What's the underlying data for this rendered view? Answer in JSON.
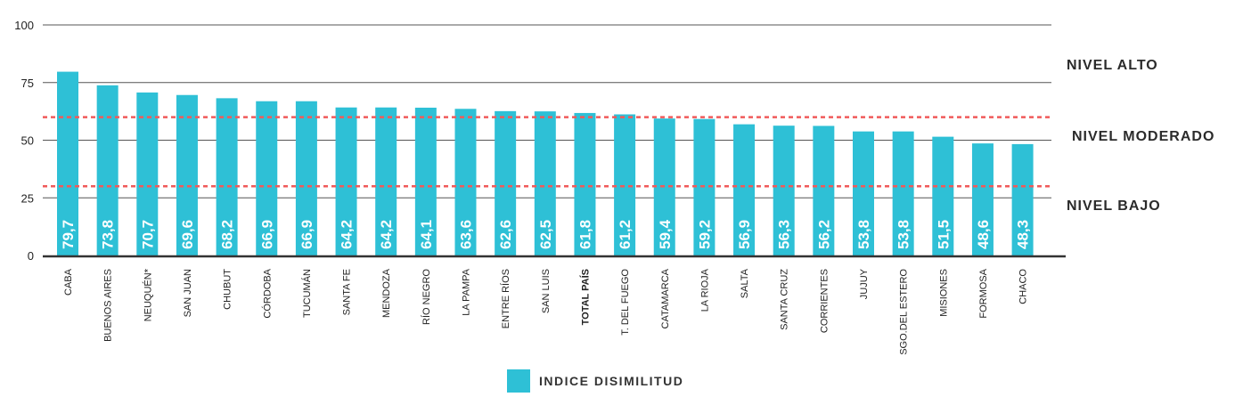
{
  "chart_data": {
    "type": "bar",
    "categories": [
      "CABA",
      "BUENOS AIRES",
      "NEUQUÉN*",
      "SAN JUAN",
      "CHUBUT",
      "CÓRDOBA",
      "TUCUMÁN",
      "SANTA FE",
      "MENDOZA",
      "RÍO NEGRO",
      "LA PAMPA",
      "ENTRE RÍOS",
      "SAN LUIS",
      "TOTAL PAÍS",
      "T. DEL FUEGO",
      "CATAMARCA",
      "LA RIOJA",
      "SALTA",
      "SANTA CRUZ",
      "CORRIENTES",
      "JUJUY",
      "SGO.DEL ESTERO",
      "MISIONES",
      "FORMOSA",
      "CHACO"
    ],
    "values": [
      79.7,
      73.8,
      70.7,
      69.6,
      68.2,
      66.9,
      66.9,
      64.2,
      64.2,
      64.1,
      63.6,
      62.6,
      62.5,
      61.8,
      61.2,
      59.4,
      59.2,
      56.9,
      56.3,
      56.2,
      53.8,
      53.8,
      51.5,
      48.6,
      48.3
    ],
    "value_labels": [
      "79,7",
      "73,8",
      "70,7",
      "69,6",
      "68,2",
      "66,9",
      "66,9",
      "64,2",
      "64,2",
      "64,1",
      "63,6",
      "62,6",
      "62,5",
      "61,8",
      "61,2",
      "59,4",
      "59,2",
      "56,9",
      "56,3",
      "56,2",
      "53,8",
      "53,8",
      "51,5",
      "48,6",
      "48,3"
    ],
    "highlight_category": "TOTAL PAÍS",
    "yticks": [
      "0",
      "25",
      "50",
      "75",
      "100"
    ],
    "ylim": [
      0,
      100
    ],
    "grid": true,
    "thresholds": [
      60,
      30
    ],
    "level_labels": [
      "NIVEL ALTO",
      "NIVEL MODERADO",
      "NIVEL BAJO"
    ],
    "series_name": "INDICE DISIMILITUD",
    "legend_position": "bottom",
    "colors": {
      "bar": "#2ec0d6",
      "threshold": "#f05a5a",
      "grid": "#555555",
      "axis": "#333333"
    }
  }
}
